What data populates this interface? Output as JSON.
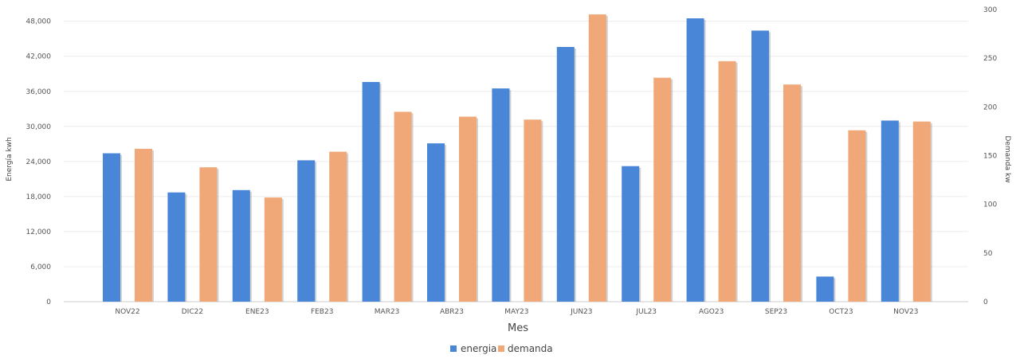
{
  "chart_data": {
    "type": "bar",
    "categories": [
      "NOV22",
      "DIC22",
      "ENE23",
      "FEB23",
      "MAR23",
      "ABR23",
      "MAY23",
      "JUN23",
      "JUL23",
      "AGO23",
      "SEP23",
      "OCT23",
      "NOV23"
    ],
    "series": [
      {
        "name": "energia",
        "axis": "left",
        "color": "#4a86d8",
        "values": [
          25400,
          18700,
          19100,
          24200,
          37600,
          27100,
          36500,
          43600,
          23200,
          48500,
          46400,
          4300,
          31000
        ]
      },
      {
        "name": "demanda",
        "axis": "right",
        "color": "#f0a878",
        "values": [
          157,
          138,
          107,
          154,
          195,
          190,
          187,
          295,
          230,
          247,
          223,
          176,
          185
        ]
      }
    ],
    "xlabel": "Mes",
    "ylabel_left": "Energía kwh",
    "ylabel_right": "Demanda kw",
    "y_left": {
      "min": 0,
      "max": 50000,
      "ticks": [
        0,
        6000,
        12000,
        18000,
        24000,
        30000,
        36000,
        42000,
        48000
      ],
      "tick_labels": [
        "0",
        "6,000",
        "12,000",
        "18,000",
        "24,000",
        "30,000",
        "36,000",
        "42,000",
        "48,000"
      ]
    },
    "y_right": {
      "min": 0,
      "max": 300,
      "ticks": [
        0,
        50,
        100,
        150,
        200,
        250,
        300
      ],
      "tick_labels": [
        "0",
        "50",
        "100",
        "150",
        "200",
        "250",
        "300"
      ]
    },
    "grid": true,
    "legend_position": "bottom-center"
  }
}
